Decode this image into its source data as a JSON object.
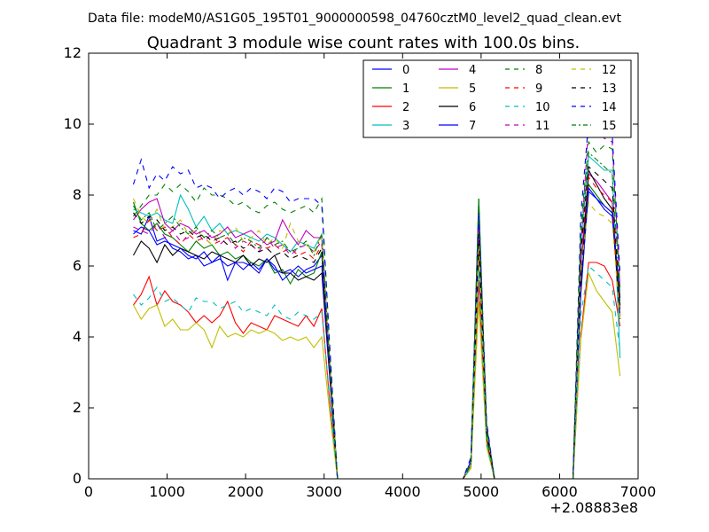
{
  "chart_data": {
    "type": "line",
    "suptitle": "Data file: modeM0/AS1G05_195T01_9000000598_04760cztM0_level2_quad_clean.evt",
    "title": "Quadrant 3 module wise count rates with 100.0s bins.",
    "xlabel": "",
    "ylabel": "",
    "x_offset_label": "+2.08883e8",
    "xlim": [
      0,
      7000
    ],
    "ylim": [
      0,
      12
    ],
    "xticks": [
      0,
      1000,
      2000,
      3000,
      4000,
      5000,
      6000,
      7000
    ],
    "yticks": [
      0,
      2,
      4,
      6,
      8,
      10,
      12
    ],
    "grid": false,
    "legend_position": "upper-right",
    "legend_columns": 4,
    "x": [
      570,
      670,
      770,
      870,
      970,
      1070,
      1170,
      1270,
      1370,
      1470,
      1570,
      1670,
      1770,
      1870,
      1970,
      2070,
      2170,
      2270,
      2370,
      2470,
      2570,
      2670,
      2770,
      2870,
      2970,
      3070,
      3170,
      3270,
      3370,
      3470,
      3570,
      3670,
      3770,
      3870,
      3970,
      4070,
      4170,
      4270,
      4370,
      4470,
      4570,
      4670,
      4770,
      4870,
      4970,
      5070,
      5170,
      5270,
      5370,
      5470,
      5570,
      5670,
      5770,
      5870,
      5970,
      6070,
      6170,
      6270,
      6370,
      6470,
      6570,
      6670,
      6770
    ],
    "series": [
      {
        "name": "0",
        "color": "#0000ff",
        "dash": "solid",
        "values": [
          7.0,
          6.9,
          7.4,
          6.7,
          6.8,
          6.5,
          6.4,
          6.2,
          6.3,
          6.0,
          6.1,
          6.2,
          6.0,
          6.1,
          5.9,
          6.1,
          5.9,
          6.2,
          5.9,
          5.8,
          5.9,
          5.7,
          5.9,
          6.0,
          6.3,
          3.0,
          0.0,
          0,
          0,
          0,
          0,
          0,
          0,
          0,
          0,
          0,
          0,
          0,
          0,
          0,
          0,
          0,
          0,
          0.5,
          7.3,
          1.5,
          0.0,
          0,
          0,
          0,
          0,
          0,
          0,
          0,
          0,
          0,
          0.0,
          5.4,
          8.1,
          7.9,
          7.6,
          7.4,
          4.8
        ]
      },
      {
        "name": "1",
        "color": "#008000",
        "dash": "solid",
        "values": [
          7.8,
          7.2,
          7.0,
          7.2,
          6.9,
          6.8,
          6.6,
          6.4,
          6.7,
          6.5,
          6.6,
          6.3,
          6.4,
          6.2,
          6.3,
          6.1,
          6.0,
          6.2,
          5.8,
          5.9,
          5.5,
          5.9,
          5.7,
          5.8,
          6.4,
          3.0,
          0.0,
          0,
          0,
          0,
          0,
          0,
          0,
          0,
          0,
          0,
          0,
          0,
          0,
          0,
          0,
          0,
          0,
          0.4,
          7.9,
          1.2,
          0.0,
          0,
          0,
          0,
          0,
          0,
          0,
          0,
          0,
          0,
          0.0,
          5.2,
          8.3,
          8.0,
          7.7,
          7.5,
          5.0
        ]
      },
      {
        "name": "2",
        "color": "#ff0000",
        "dash": "solid",
        "values": [
          4.9,
          5.2,
          5.7,
          4.9,
          5.3,
          5.0,
          4.9,
          4.7,
          4.4,
          4.6,
          4.4,
          4.6,
          5.0,
          4.4,
          4.1,
          4.4,
          4.3,
          4.2,
          4.6,
          4.5,
          4.4,
          4.3,
          4.6,
          4.3,
          4.8,
          2.2,
          0.0,
          0,
          0,
          0,
          0,
          0,
          0,
          0,
          0,
          0,
          0,
          0,
          0,
          0,
          0,
          0,
          0,
          0.3,
          5.6,
          1.0,
          0.0,
          0,
          0,
          0,
          0,
          0,
          0,
          0,
          0,
          0,
          0.0,
          4.0,
          6.1,
          6.1,
          6.0,
          5.6,
          4.3
        ]
      },
      {
        "name": "3",
        "color": "#00bfbf",
        "dash": "solid",
        "values": [
          7.6,
          7.5,
          7.4,
          7.5,
          7.3,
          7.2,
          8.0,
          7.6,
          7.1,
          7.4,
          7.0,
          7.2,
          6.9,
          7.0,
          6.9,
          6.8,
          6.7,
          6.9,
          6.8,
          6.6,
          6.4,
          6.7,
          6.6,
          6.5,
          6.9,
          3.4,
          0.0,
          0,
          0,
          0,
          0,
          0,
          0,
          0,
          0,
          0,
          0,
          0,
          0,
          0,
          0,
          0,
          0,
          0.4,
          7.4,
          1.3,
          0.0,
          0,
          0,
          0,
          0,
          0,
          0,
          0,
          0,
          0,
          0.0,
          6.6,
          9.1,
          8.9,
          8.7,
          8.7,
          3.4
        ]
      },
      {
        "name": "4",
        "color": "#bf00bf",
        "dash": "solid",
        "values": [
          7.3,
          7.6,
          7.8,
          7.9,
          7.2,
          7.0,
          7.2,
          7.1,
          6.9,
          7.0,
          6.8,
          6.9,
          7.1,
          6.8,
          6.9,
          7.0,
          6.8,
          6.6,
          6.7,
          7.3,
          6.9,
          6.6,
          7.0,
          6.8,
          6.8,
          3.3,
          0.0,
          0,
          0,
          0,
          0,
          0,
          0,
          0,
          0,
          0,
          0,
          0,
          0,
          0,
          0,
          0,
          0,
          0.4,
          7.2,
          1.3,
          0.0,
          0,
          0,
          0,
          0,
          0,
          0,
          0,
          0,
          0,
          0.0,
          6.1,
          8.6,
          8.4,
          8.1,
          7.8,
          4.6
        ]
      },
      {
        "name": "5",
        "color": "#bfbf00",
        "dash": "solid",
        "values": [
          4.9,
          4.5,
          4.8,
          4.9,
          4.3,
          4.5,
          4.2,
          4.2,
          4.4,
          4.2,
          3.7,
          4.3,
          4.0,
          4.1,
          4.0,
          4.2,
          4.1,
          4.2,
          4.1,
          3.9,
          4.0,
          3.9,
          4.0,
          3.7,
          4.0,
          1.9,
          0.0,
          0,
          0,
          0,
          0,
          0,
          0,
          0,
          0,
          0,
          0,
          0,
          0,
          0,
          0,
          0,
          0,
          0.3,
          5.0,
          0.9,
          0.0,
          0,
          0,
          0,
          0,
          0,
          0,
          0,
          0,
          0,
          0.0,
          3.9,
          5.8,
          5.3,
          5.0,
          4.7,
          2.9
        ]
      },
      {
        "name": "6",
        "color": "#000000",
        "dash": "solid",
        "values": [
          6.3,
          6.7,
          6.5,
          6.1,
          6.6,
          6.3,
          6.5,
          6.4,
          6.3,
          6.2,
          6.4,
          6.3,
          6.2,
          6.1,
          6.3,
          6.0,
          6.2,
          6.1,
          6.3,
          5.8,
          5.8,
          5.6,
          5.7,
          5.6,
          5.8,
          2.9,
          0.0,
          0,
          0,
          0,
          0,
          0,
          0,
          0,
          0,
          0,
          0,
          0,
          0,
          0,
          0,
          0,
          0,
          0.4,
          6.5,
          1.2,
          0.0,
          0,
          0,
          0,
          0,
          0,
          0,
          0,
          0,
          0,
          0.0,
          5.5,
          8.7,
          8.3,
          7.9,
          7.6,
          4.5
        ]
      },
      {
        "name": "7",
        "color": "#0000ff",
        "dash": "solid",
        "values": [
          6.9,
          7.1,
          7.0,
          6.6,
          6.7,
          6.6,
          6.5,
          6.3,
          6.2,
          6.4,
          6.1,
          6.3,
          5.6,
          6.1,
          6.1,
          6.0,
          5.8,
          6.2,
          6.0,
          5.6,
          5.8,
          6.0,
          5.8,
          5.9,
          6.0,
          3.0,
          0.0,
          0,
          0,
          0,
          0,
          0,
          0,
          0,
          0,
          0,
          0,
          0,
          0,
          0,
          0,
          0,
          0,
          0.4,
          7.6,
          1.4,
          0.0,
          0,
          0,
          0,
          0,
          0,
          0,
          0,
          0,
          0,
          0.0,
          5.2,
          8.2,
          7.9,
          7.7,
          7.5,
          5.1
        ]
      },
      {
        "name": "8",
        "color": "#008000",
        "dash": "dashed",
        "values": [
          7.4,
          7.7,
          8.0,
          8.0,
          8.3,
          8.1,
          8.3,
          8.1,
          7.8,
          8.2,
          8.0,
          8.0,
          7.9,
          7.7,
          7.8,
          7.6,
          7.5,
          7.7,
          7.8,
          7.6,
          7.5,
          7.6,
          7.7,
          7.5,
          7.9,
          3.8,
          0.0,
          0,
          0,
          0,
          0,
          0,
          0,
          0,
          0,
          0,
          0,
          0,
          0,
          0,
          0,
          0,
          0,
          0.5,
          7.0,
          1.5,
          0.0,
          0,
          0,
          0,
          0,
          0,
          0,
          0,
          0,
          0,
          0.0,
          7.1,
          9.5,
          9.2,
          9.4,
          9.3,
          5.4
        ]
      },
      {
        "name": "9",
        "color": "#ff0000",
        "dash": "dashed",
        "values": [
          6.8,
          6.9,
          7.3,
          7.0,
          7.1,
          6.8,
          6.6,
          6.9,
          6.7,
          6.8,
          6.6,
          6.7,
          6.8,
          6.6,
          6.4,
          6.7,
          6.6,
          6.5,
          6.6,
          6.4,
          6.5,
          6.3,
          6.4,
          6.2,
          6.6,
          3.2,
          0.0,
          0,
          0,
          0,
          0,
          0,
          0,
          0,
          0,
          0,
          0,
          0,
          0,
          0,
          0,
          0,
          0,
          0.4,
          6.8,
          1.3,
          0.0,
          0,
          0,
          0,
          0,
          0,
          0,
          0,
          0,
          0,
          0.0,
          6.3,
          8.5,
          8.2,
          8.0,
          7.8,
          4.7
        ]
      },
      {
        "name": "10",
        "color": "#00bfbf",
        "dash": "dashed",
        "values": [
          5.2,
          4.9,
          5.1,
          5.4,
          5.0,
          5.1,
          4.9,
          4.7,
          5.1,
          5.0,
          5.0,
          4.8,
          4.9,
          5.0,
          4.7,
          4.8,
          4.7,
          4.6,
          4.9,
          4.6,
          4.5,
          4.7,
          4.6,
          4.5,
          4.7,
          2.3,
          0.0,
          0,
          0,
          0,
          0,
          0,
          0,
          0,
          0,
          0,
          0,
          0,
          0,
          0,
          0,
          0,
          0,
          0.3,
          5.9,
          1.0,
          0.0,
          0,
          0,
          0,
          0,
          0,
          0,
          0,
          0,
          0,
          0.0,
          4.6,
          6.0,
          5.8,
          5.6,
          5.4,
          3.6
        ]
      },
      {
        "name": "11",
        "color": "#bf00bf",
        "dash": "dashed",
        "values": [
          7.1,
          7.0,
          6.9,
          7.2,
          6.8,
          7.0,
          6.7,
          6.8,
          7.0,
          6.7,
          6.9,
          6.6,
          6.8,
          6.5,
          6.7,
          6.6,
          6.4,
          6.8,
          6.5,
          6.6,
          6.3,
          6.5,
          6.6,
          6.4,
          6.7,
          3.3,
          0.0,
          0,
          0,
          0,
          0,
          0,
          0,
          0,
          0,
          0,
          0,
          0,
          0,
          0,
          0,
          0,
          0,
          0.4,
          7.1,
          1.3,
          0.0,
          0,
          0,
          0,
          0,
          0,
          0,
          0,
          0,
          0,
          0.0,
          6.5,
          10.0,
          9.8,
          9.6,
          9.5,
          5.4
        ]
      },
      {
        "name": "12",
        "color": "#bfbf00",
        "dash": "dashed",
        "values": [
          7.9,
          7.4,
          7.2,
          7.6,
          7.0,
          7.1,
          7.3,
          6.9,
          7.0,
          6.8,
          6.6,
          7.0,
          6.9,
          7.1,
          6.7,
          6.8,
          7.0,
          6.6,
          6.8,
          6.5,
          7.2,
          6.7,
          6.6,
          6.4,
          6.9,
          3.4,
          0.0,
          0,
          0,
          0,
          0,
          0,
          0,
          0,
          0,
          0,
          0,
          0,
          0,
          0,
          0,
          0,
          0,
          0.4,
          6.6,
          1.3,
          0.0,
          0,
          0,
          0,
          0,
          0,
          0,
          0,
          0,
          0,
          0.0,
          5.8,
          7.8,
          7.5,
          7.4,
          7.2,
          4.5
        ]
      },
      {
        "name": "13",
        "color": "#000000",
        "dash": "dashed",
        "values": [
          7.5,
          7.2,
          7.4,
          7.3,
          7.0,
          7.1,
          6.9,
          7.0,
          6.8,
          6.9,
          6.7,
          6.8,
          6.6,
          6.7,
          6.5,
          6.6,
          6.4,
          6.5,
          6.3,
          6.4,
          6.2,
          6.3,
          6.2,
          6.1,
          6.5,
          3.2,
          0.0,
          0,
          0,
          0,
          0,
          0,
          0,
          0,
          0,
          0,
          0,
          0,
          0,
          0,
          0,
          0,
          0,
          0.4,
          6.9,
          1.3,
          0.0,
          0,
          0,
          0,
          0,
          0,
          0,
          0,
          0,
          0,
          0.0,
          6.4,
          8.8,
          8.6,
          8.4,
          8.2,
          4.9
        ]
      },
      {
        "name": "14",
        "color": "#0000ff",
        "dash": "dashed",
        "values": [
          8.3,
          9.0,
          8.2,
          8.6,
          8.4,
          8.8,
          8.6,
          8.7,
          8.2,
          8.3,
          8.2,
          7.9,
          8.1,
          8.2,
          8.0,
          8.2,
          8.1,
          7.9,
          8.2,
          8.1,
          7.8,
          7.9,
          7.9,
          7.9,
          7.7,
          3.8,
          0.0,
          0,
          0,
          0,
          0,
          0,
          0,
          0,
          0,
          0,
          0,
          0,
          0,
          0,
          0,
          0,
          0,
          0.6,
          7.7,
          1.6,
          0.0,
          0,
          0,
          0,
          0,
          0,
          0,
          0,
          0,
          0,
          0.0,
          7.4,
          10.1,
          9.9,
          9.8,
          9.7,
          5.8
        ]
      },
      {
        "name": "15",
        "color": "#008000",
        "dash": "dashdot",
        "values": [
          7.7,
          7.3,
          7.5,
          7.0,
          7.2,
          7.4,
          7.1,
          6.9,
          7.1,
          6.8,
          7.0,
          6.8,
          6.9,
          6.6,
          6.8,
          6.7,
          6.5,
          6.8,
          6.6,
          6.7,
          6.4,
          6.5,
          6.7,
          6.3,
          6.9,
          3.3,
          0.0,
          0,
          0,
          0,
          0,
          0,
          0,
          0,
          0,
          0,
          0,
          0,
          0,
          0,
          0,
          0,
          0,
          0.4,
          7.9,
          1.4,
          0.0,
          0,
          0,
          0,
          0,
          0,
          0,
          0,
          0,
          0,
          0.0,
          6.8,
          9.2,
          9.0,
          8.8,
          8.6,
          5.2
        ]
      }
    ]
  }
}
